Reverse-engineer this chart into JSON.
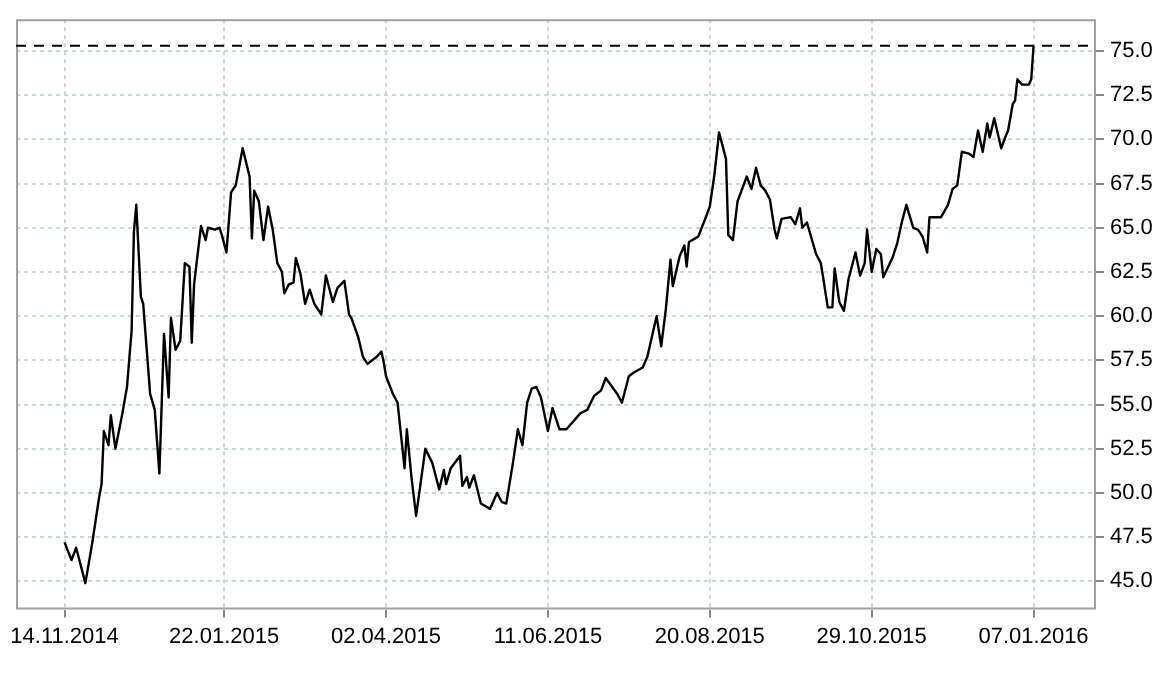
{
  "chart_data": {
    "type": "line",
    "x": [
      "2014-11-14",
      "2014-11-17",
      "2014-11-19",
      "2014-11-23",
      "2014-11-26",
      "2014-11-29",
      "2014-11-30",
      "2014-12-01",
      "2014-12-03",
      "2014-12-04",
      "2014-12-06",
      "2014-12-09",
      "2014-12-11",
      "2014-12-13",
      "2014-12-14",
      "2014-12-15",
      "2014-12-17",
      "2014-12-18",
      "2014-12-21",
      "2014-12-23",
      "2014-12-25",
      "2014-12-27",
      "2014-12-29",
      "2014-12-30",
      "2015-01-01",
      "2015-01-03",
      "2015-01-05",
      "2015-01-07",
      "2015-01-08",
      "2015-01-09",
      "2015-01-12",
      "2015-01-14",
      "2015-01-15",
      "2015-01-18",
      "2015-01-20",
      "2015-01-21",
      "2015-01-23",
      "2015-01-25",
      "2015-01-27",
      "2015-01-30",
      "2015-02-02",
      "2015-02-03",
      "2015-02-04",
      "2015-02-06",
      "2015-02-08",
      "2015-02-10",
      "2015-02-12",
      "2015-02-14",
      "2015-02-16",
      "2015-02-17",
      "2015-02-19",
      "2015-02-21",
      "2015-02-22",
      "2015-02-24",
      "2015-02-26",
      "2015-02-28",
      "2015-03-02",
      "2015-03-05",
      "2015-03-07",
      "2015-03-10",
      "2015-03-12",
      "2015-03-15",
      "2015-03-17",
      "2015-03-18",
      "2015-03-21",
      "2015-03-23",
      "2015-03-25",
      "2015-03-29",
      "2015-03-31",
      "2015-04-01",
      "2015-04-02",
      "2015-04-05",
      "2015-04-07",
      "2015-04-10",
      "2015-04-11",
      "2015-04-13",
      "2015-04-15",
      "2015-04-17",
      "2015-04-19",
      "2015-04-22",
      "2015-04-25",
      "2015-04-27",
      "2015-04-28",
      "2015-04-30",
      "2015-05-04",
      "2015-05-05",
      "2015-05-07",
      "2015-05-08",
      "2015-05-10",
      "2015-05-13",
      "2015-05-17",
      "2015-05-20",
      "2015-05-22",
      "2015-05-24",
      "2015-05-27",
      "2015-05-29",
      "2015-05-31",
      "2015-06-02",
      "2015-06-04",
      "2015-06-06",
      "2015-06-08",
      "2015-06-11",
      "2015-06-13",
      "2015-06-16",
      "2015-06-19",
      "2015-06-21",
      "2015-06-25",
      "2015-06-28",
      "2015-07-01",
      "2015-07-04",
      "2015-07-06",
      "2015-07-11",
      "2015-07-13",
      "2015-07-16",
      "2015-07-18",
      "2015-07-22",
      "2015-07-24",
      "2015-07-28",
      "2015-07-30",
      "2015-08-01",
      "2015-08-03",
      "2015-08-04",
      "2015-08-07",
      "2015-08-09",
      "2015-08-10",
      "2015-08-11",
      "2015-08-15",
      "2015-08-18",
      "2015-08-20",
      "2015-08-22",
      "2015-08-24",
      "2015-08-27",
      "2015-08-28",
      "2015-08-30",
      "2015-09-01",
      "2015-09-05",
      "2015-09-07",
      "2015-09-09",
      "2015-09-11",
      "2015-09-13",
      "2015-09-15",
      "2015-09-17",
      "2015-09-18",
      "2015-09-20",
      "2015-09-24",
      "2015-09-26",
      "2015-09-28",
      "2015-09-29",
      "2015-10-01",
      "2015-10-05",
      "2015-10-07",
      "2015-10-08",
      "2015-10-10",
      "2015-10-12",
      "2015-10-13",
      "2015-10-15",
      "2015-10-17",
      "2015-10-19",
      "2015-10-22",
      "2015-10-24",
      "2015-10-26",
      "2015-10-27",
      "2015-10-29",
      "2015-10-31",
      "2015-11-02",
      "2015-11-03",
      "2015-11-07",
      "2015-11-09",
      "2015-11-11",
      "2015-11-13",
      "2015-11-16",
      "2015-11-18",
      "2015-11-20",
      "2015-11-22",
      "2015-11-23",
      "2015-11-28",
      "2015-12-01",
      "2015-12-03",
      "2015-12-05",
      "2015-12-07",
      "2015-12-10",
      "2015-12-12",
      "2015-12-14",
      "2015-12-16",
      "2015-12-18",
      "2015-12-19",
      "2015-12-21",
      "2015-12-24",
      "2015-12-26",
      "2015-12-27",
      "2015-12-29",
      "2015-12-30",
      "2015-12-31",
      "2016-01-02",
      "2016-01-05",
      "2016-01-06",
      "2016-01-07"
    ],
    "series": [
      {
        "color": "#000000",
        "values": [
          47.2,
          46.2,
          46.9,
          44.9,
          47.2,
          49.8,
          50.5,
          53.5,
          52.7,
          54.4,
          52.5,
          54.5,
          56.0,
          59.2,
          64.8,
          66.3,
          61.1,
          60.7,
          55.6,
          54.7,
          51.1,
          59.0,
          55.4,
          59.9,
          58.1,
          58.6,
          63.0,
          62.8,
          58.5,
          61.8,
          65.1,
          64.3,
          65.0,
          64.9,
          65.0,
          64.6,
          63.6,
          67.0,
          67.4,
          69.5,
          67.9,
          64.4,
          67.1,
          66.5,
          64.3,
          66.2,
          64.9,
          63.0,
          62.5,
          61.3,
          61.8,
          61.9,
          63.3,
          62.4,
          60.7,
          61.5,
          60.7,
          60.1,
          62.3,
          60.8,
          61.6,
          62.0,
          60.1,
          59.9,
          58.8,
          57.7,
          57.3,
          57.7,
          58.0,
          57.4,
          56.6,
          55.6,
          55.1,
          51.4,
          53.6,
          50.9,
          48.7,
          50.6,
          52.5,
          51.7,
          50.2,
          51.3,
          50.5,
          51.4,
          52.1,
          50.4,
          50.9,
          50.3,
          51.0,
          49.4,
          49.1,
          50.0,
          49.5,
          49.4,
          51.8,
          53.6,
          52.7,
          55.1,
          55.9,
          56.0,
          55.4,
          53.5,
          54.8,
          53.6,
          53.6,
          53.9,
          54.5,
          54.7,
          55.5,
          55.8,
          56.5,
          55.6,
          55.1,
          56.6,
          56.8,
          57.1,
          57.7,
          60.0,
          58.3,
          60.4,
          63.2,
          61.7,
          63.4,
          64.0,
          62.8,
          64.2,
          64.5,
          65.5,
          66.2,
          68.0,
          70.4,
          68.9,
          64.6,
          64.3,
          66.5,
          67.9,
          67.2,
          68.4,
          67.4,
          67.1,
          66.6,
          64.9,
          64.4,
          65.5,
          65.6,
          65.2,
          66.1,
          65.0,
          65.3,
          63.5,
          63.0,
          62.2,
          60.5,
          60.5,
          62.7,
          60.8,
          60.3,
          62.1,
          63.6,
          62.3,
          63.0,
          64.9,
          62.5,
          63.8,
          63.5,
          62.2,
          63.3,
          64.1,
          65.3,
          66.3,
          65.0,
          64.9,
          64.5,
          63.6,
          65.6,
          65.6,
          66.3,
          67.2,
          67.4,
          69.3,
          69.2,
          69.0,
          70.5,
          69.3,
          70.9,
          70.1,
          71.2,
          69.5,
          70.2,
          70.5,
          72.0,
          72.2,
          73.4,
          73.1,
          73.1,
          73.4,
          75.3
        ]
      }
    ],
    "xlim": [
      "2014-10-24",
      "2016-02-03"
    ],
    "xticks": [
      {
        "value": "2014-11-14",
        "label": "14.11.2014"
      },
      {
        "value": "2015-01-22",
        "label": "22.01.2015"
      },
      {
        "value": "2015-04-02",
        "label": "02.04.2015"
      },
      {
        "value": "2015-06-11",
        "label": "11.06.2015"
      },
      {
        "value": "2015-08-20",
        "label": "20.08.2015"
      },
      {
        "value": "2015-10-29",
        "label": "29.10.2015"
      },
      {
        "value": "2016-01-07",
        "label": "07.01.2016"
      }
    ],
    "ylim": [
      43.4,
      76.8
    ],
    "yticks": [
      {
        "value": 45,
        "label": "45.0"
      },
      {
        "value": 47.5,
        "label": "47.5"
      },
      {
        "value": 50,
        "label": "50.0"
      },
      {
        "value": 52.5,
        "label": "52.5"
      },
      {
        "value": 55,
        "label": "55.0"
      },
      {
        "value": 57.5,
        "label": "57.5"
      },
      {
        "value": 60,
        "label": "60.0"
      },
      {
        "value": 62.5,
        "label": "62.5"
      },
      {
        "value": 65,
        "label": "65.0"
      },
      {
        "value": 67.5,
        "label": "67.5"
      },
      {
        "value": 70,
        "label": "70.0"
      },
      {
        "value": 72.5,
        "label": "72.5"
      },
      {
        "value": 75,
        "label": "75.0"
      }
    ],
    "ref_lines": [
      {
        "axis": "y",
        "value": 75.3,
        "color": "#000000",
        "line_style": "dashed"
      }
    ],
    "grid": true,
    "legend": false,
    "marker": "none",
    "line_style": "solid"
  }
}
